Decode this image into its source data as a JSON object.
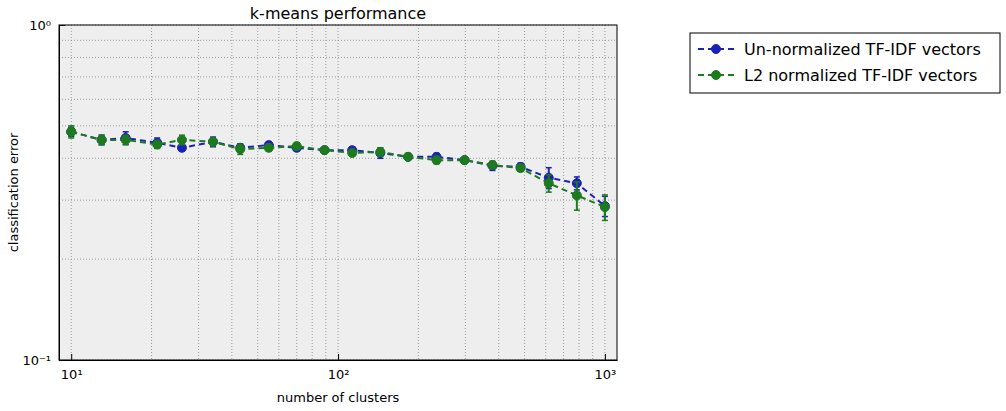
{
  "chart_data": {
    "type": "line",
    "title": "k-means performance",
    "x_label": "number of clusters",
    "y_label": "classification error",
    "log": true,
    "grid": true,
    "legend": "upper right",
    "marker": "circle",
    "line_style": "dashed",
    "xlim": [
      9,
      1110
    ],
    "ylim": [
      0.1,
      1
    ],
    "xticks": [
      {
        "value": 10,
        "label": "10¹"
      },
      {
        "value": 100,
        "label": "10²"
      },
      {
        "value": 1000,
        "label": "10³"
      }
    ],
    "yticks": [
      {
        "value": 0.1,
        "label": "10⁻¹"
      },
      {
        "value": 1,
        "label": "10⁰"
      }
    ],
    "xminorticks": [
      20,
      30,
      40,
      50,
      60,
      70,
      80,
      90,
      200,
      300,
      400,
      500,
      600,
      700,
      800,
      900
    ],
    "yminorticks": [
      0.2,
      0.3,
      0.4,
      0.5,
      0.6,
      0.7,
      0.8,
      0.9
    ],
    "x": [
      10,
      13,
      16,
      21,
      26,
      34,
      43,
      55,
      70,
      89,
      113,
      144,
      183,
      234,
      298,
      379,
      483,
      616,
      785,
      1000
    ],
    "series": [
      {
        "name": "Un-normalized TF-IDF vectors",
        "color": "#1c22b8",
        "values": [
          0.48,
          0.454,
          0.46,
          0.445,
          0.43,
          0.448,
          0.43,
          0.438,
          0.43,
          0.423,
          0.423,
          0.415,
          0.404,
          0.404,
          0.395,
          0.38,
          0.377,
          0.35,
          0.337,
          0.288
        ],
        "errors": [
          0.015,
          0.015,
          0.02,
          0.015,
          0.01,
          0.015,
          0.012,
          0.01,
          0.01,
          0.008,
          0.01,
          0.015,
          0.005,
          0.01,
          0.005,
          0.012,
          0.01,
          0.025,
          0.015,
          0.02
        ]
      },
      {
        "name": "L2 normalized TF-IDF vectors",
        "color": "#1d7a1d",
        "values": [
          0.48,
          0.454,
          0.454,
          0.44,
          0.454,
          0.448,
          0.426,
          0.43,
          0.435,
          0.423,
          0.415,
          0.418,
          0.404,
          0.395,
          0.395,
          0.382,
          0.374,
          0.337,
          0.31,
          0.286
        ],
        "errors": [
          0.02,
          0.015,
          0.015,
          0.012,
          0.015,
          0.012,
          0.015,
          0.01,
          0.01,
          0.008,
          0.008,
          0.012,
          0.005,
          0.01,
          0.005,
          0.008,
          0.008,
          0.02,
          0.03,
          0.025
        ]
      }
    ]
  }
}
